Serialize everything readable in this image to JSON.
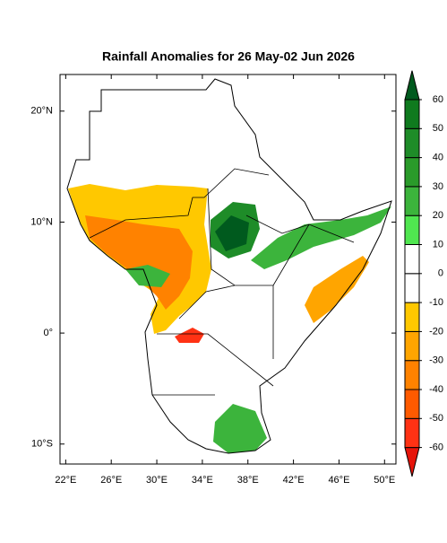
{
  "title": "Rainfall Anomalies for 26 May-02 Jun 2026",
  "axes": {
    "xlim": [
      21.5,
      51
    ],
    "ylim": [
      -11.8,
      23.3
    ],
    "xticks": [
      {
        "value": 22,
        "label": "22°E"
      },
      {
        "value": 26,
        "label": "26°E"
      },
      {
        "value": 30,
        "label": "30°E"
      },
      {
        "value": 34,
        "label": "34°E"
      },
      {
        "value": 38,
        "label": "38°E"
      },
      {
        "value": 42,
        "label": "42°E"
      },
      {
        "value": 46,
        "label": "46°E"
      },
      {
        "value": 50,
        "label": "50°E"
      }
    ],
    "yticks": [
      {
        "value": 20,
        "label": "20°N"
      },
      {
        "value": 10,
        "label": "10°N"
      },
      {
        "value": 0,
        "label": "0°"
      },
      {
        "value": -10,
        "label": "10°S"
      }
    ]
  },
  "colorbar": {
    "levels": [
      -60,
      -50,
      -40,
      -30,
      -20,
      -10,
      0,
      10,
      20,
      30,
      40,
      50,
      60
    ],
    "colors": [
      "#e6140a",
      "#ff3214",
      "#ff5a00",
      "#ff8200",
      "#ffa500",
      "#ffc800",
      "#ffffff",
      "#ffffff",
      "#50e650",
      "#3cb43c",
      "#2a9b2a",
      "#1e8c28",
      "#0f7a1e",
      "#005a1e"
    ]
  }
}
